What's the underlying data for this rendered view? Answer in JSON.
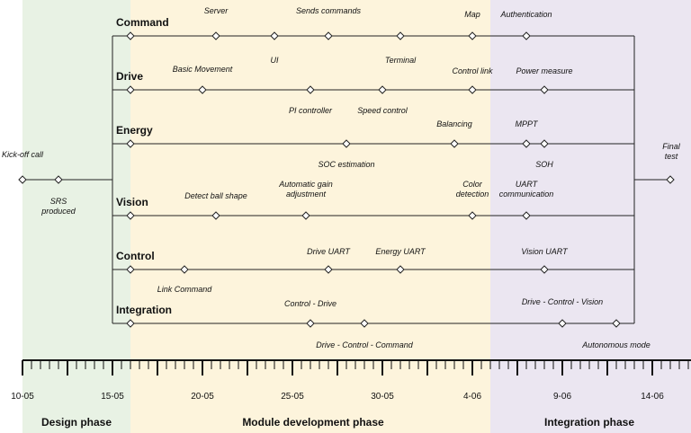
{
  "phases": [
    {
      "name": "Design phase",
      "color": "#e8f2e4"
    },
    {
      "name": "Module development phase",
      "color": "#fdf4dc"
    },
    {
      "name": "Integration phase",
      "color": "#ebe6f1"
    }
  ],
  "axis": {
    "ticks": [
      "10-05",
      "15-05",
      "20-05",
      "25-05",
      "30-05",
      "4-06",
      "9-06",
      "14-06"
    ]
  },
  "start": {
    "kickoff": {
      "lines": [
        "Kick-off call"
      ]
    },
    "srs": {
      "lines": [
        "SRS",
        "produced"
      ]
    }
  },
  "end": {
    "final_test": {
      "lines": [
        "Final",
        "test"
      ]
    }
  },
  "tracks": [
    {
      "name": "Command",
      "milestones": [
        {
          "lines": [
            "Server"
          ]
        },
        {
          "lines": [
            "UI"
          ]
        },
        {
          "lines": [
            "Sends commands"
          ]
        },
        {
          "lines": [
            "Terminal"
          ]
        },
        {
          "lines": [
            "Map"
          ]
        },
        {
          "lines": [
            "Authentication"
          ]
        }
      ]
    },
    {
      "name": "Drive",
      "milestones": [
        {
          "lines": [
            "Basic Movement"
          ]
        },
        {
          "lines": [
            "PI controller"
          ]
        },
        {
          "lines": [
            "Speed control"
          ]
        },
        {
          "lines": [
            "Control link"
          ]
        },
        {
          "lines": [
            "Power measure"
          ]
        }
      ]
    },
    {
      "name": "Energy",
      "milestones": [
        {
          "lines": [
            "SOC estimation"
          ]
        },
        {
          "lines": [
            "Balancing"
          ]
        },
        {
          "lines": [
            "MPPT"
          ]
        },
        {
          "lines": [
            "SOH"
          ]
        }
      ]
    },
    {
      "name": "Vision",
      "milestones": [
        {
          "lines": [
            "Detect ball shape"
          ]
        },
        {
          "lines": [
            "Automatic gain",
            "adjustment"
          ]
        },
        {
          "lines": [
            "Color",
            "detection"
          ]
        },
        {
          "lines": [
            "UART",
            "communication"
          ]
        }
      ]
    },
    {
      "name": "Control",
      "milestones": [
        {
          "lines": [
            "Link Command"
          ]
        },
        {
          "lines": [
            "Drive UART"
          ]
        },
        {
          "lines": [
            "Energy UART"
          ]
        },
        {
          "lines": [
            "Vision UART"
          ]
        }
      ]
    },
    {
      "name": "Integration",
      "milestones": [
        {
          "lines": [
            "Control - Drive"
          ]
        },
        {
          "lines": [
            "Drive - Control - Command"
          ]
        },
        {
          "lines": [
            "Drive - Control - Vision"
          ]
        },
        {
          "lines": [
            "Autonomous mode"
          ]
        }
      ]
    }
  ]
}
